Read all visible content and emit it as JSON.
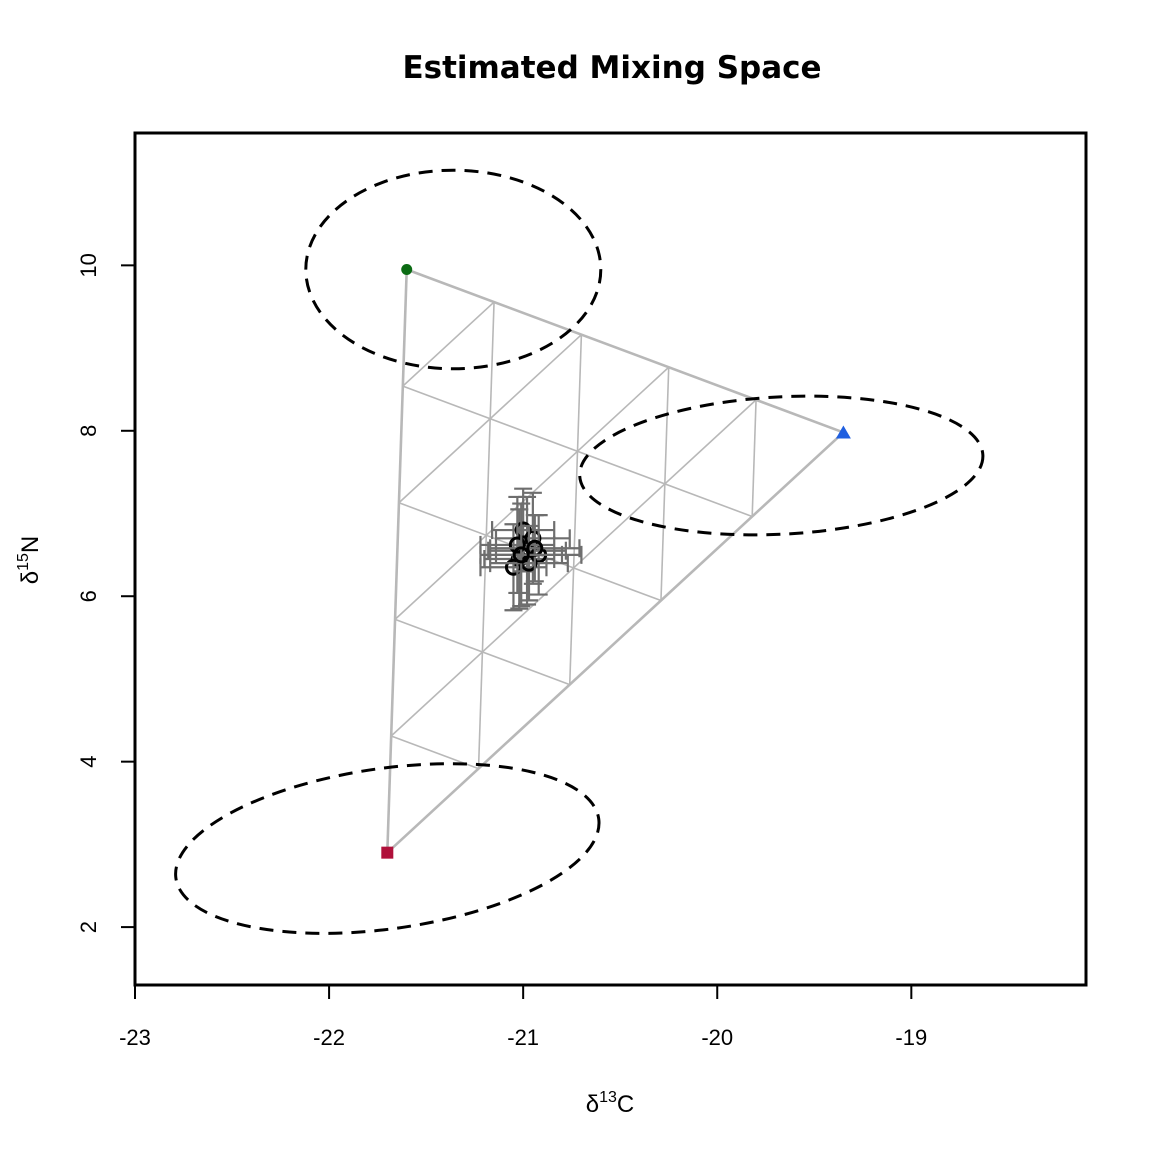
{
  "chart_data": {
    "type": "scatter",
    "title": "Estimated Mixing Space",
    "xlabel": {
      "prefix": "δ",
      "sup": "13",
      "suffix": "C"
    },
    "ylabel": {
      "prefix": "δ",
      "sup": "15",
      "suffix": "N"
    },
    "xlim": [
      -23,
      -18.1
    ],
    "ylim": [
      1.3,
      11.6
    ],
    "xticks": [
      -23,
      -22,
      -21,
      -20,
      -19
    ],
    "xtick_labels": [
      "-23",
      "-22",
      "-21",
      "-20",
      "-19"
    ],
    "yticks": [
      2,
      4,
      6,
      8,
      10
    ],
    "ytick_labels": [
      "2",
      "4",
      "6",
      "8",
      "10"
    ],
    "sources": [
      {
        "x": -21.6,
        "y": 9.95,
        "marker": "circle",
        "color": "#0b6b13",
        "ellipse": {
          "cx": -21.36,
          "cy": 9.95,
          "rx": 0.76,
          "ry": 1.2,
          "angle": 0
        }
      },
      {
        "x": -19.35,
        "y": 7.98,
        "marker": "triangle",
        "color": "#1f5fe0",
        "ellipse": {
          "cx": -19.67,
          "cy": 7.58,
          "rx": 1.04,
          "ry": 0.83,
          "angle": -3
        }
      },
      {
        "x": -21.7,
        "y": 2.9,
        "marker": "square",
        "color": "#b0103a",
        "ellipse": {
          "cx": -21.7,
          "cy": 2.95,
          "rx": 1.1,
          "ry": 0.97,
          "angle": -8
        }
      }
    ],
    "grid_divisions": 5,
    "consumers": [
      {
        "x": -20.98,
        "y": 6.55,
        "xerr": 0.2,
        "yerr": 0.65
      },
      {
        "x": -21.02,
        "y": 6.45,
        "xerr": 0.18,
        "yerr": 0.6
      },
      {
        "x": -20.95,
        "y": 6.7,
        "xerr": 0.19,
        "yerr": 0.55
      },
      {
        "x": -21.05,
        "y": 6.35,
        "xerr": 0.17,
        "yerr": 0.52
      },
      {
        "x": -20.92,
        "y": 6.5,
        "xerr": 0.22,
        "yerr": 0.48
      },
      {
        "x": -21.0,
        "y": 6.8,
        "xerr": 0.16,
        "yerr": 0.5
      },
      {
        "x": -20.97,
        "y": 6.4,
        "xerr": 0.2,
        "yerr": 0.45
      },
      {
        "x": -21.03,
        "y": 6.62,
        "xerr": 0.19,
        "yerr": 0.58
      },
      {
        "x": -20.94,
        "y": 6.58,
        "xerr": 0.23,
        "yerr": 0.4
      },
      {
        "x": -21.01,
        "y": 6.5,
        "xerr": 0.21,
        "yerr": 0.62
      }
    ]
  }
}
